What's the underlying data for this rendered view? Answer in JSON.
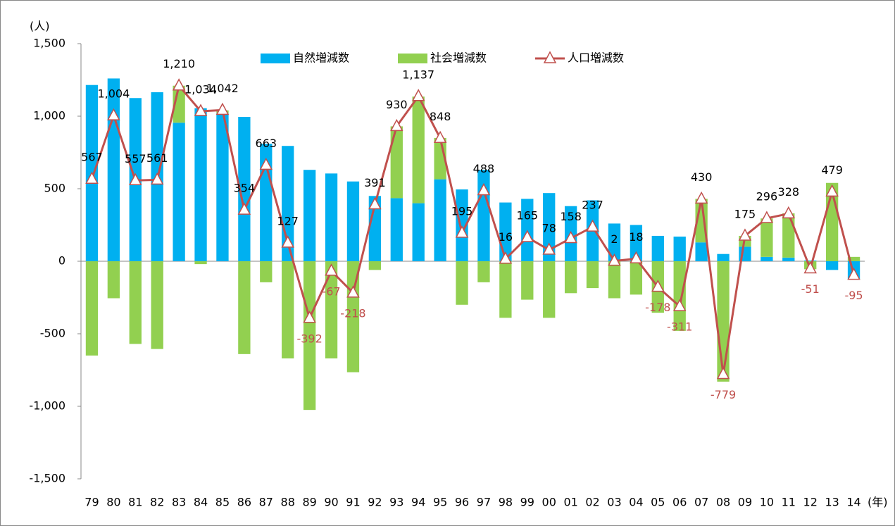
{
  "chart_data": {
    "type": "bar_line",
    "y_label": "(人)",
    "x_label": "(年)",
    "categories": [
      "79",
      "80",
      "81",
      "82",
      "83",
      "84",
      "85",
      "86",
      "87",
      "88",
      "89",
      "90",
      "91",
      "92",
      "93",
      "94",
      "95",
      "96",
      "97",
      "98",
      "99",
      "00",
      "01",
      "02",
      "03",
      "04",
      "05",
      "06",
      "07",
      "08",
      "09",
      "10",
      "11",
      "12",
      "13",
      "14"
    ],
    "series": [
      {
        "name": "自然増減数",
        "color": "#00b0f0",
        "kind": "bar",
        "values": [
          1215,
          1260,
          1125,
          1165,
          955,
          1055,
          1020,
          995,
          810,
          795,
          630,
          605,
          550,
          450,
          435,
          400,
          565,
          495,
          630,
          405,
          430,
          470,
          380,
          420,
          260,
          250,
          175,
          170,
          130,
          50,
          100,
          30,
          25,
          5,
          -60,
          -125
        ]
      },
      {
        "name": "社会増減数",
        "color": "#92d050",
        "kind": "bar",
        "values": [
          -650,
          -255,
          -570,
          -605,
          255,
          -20,
          20,
          -640,
          -145,
          -670,
          -1025,
          -670,
          -765,
          -60,
          495,
          735,
          285,
          -300,
          -145,
          -390,
          -265,
          -390,
          -220,
          -185,
          -255,
          -230,
          -355,
          -480,
          300,
          -830,
          75,
          265,
          305,
          -55,
          540,
          30
        ]
      },
      {
        "name": "人口増減数",
        "color": "#c0504d",
        "kind": "line",
        "values": [
          567,
          1004,
          557,
          561,
          1210,
          1034,
          1042,
          354,
          663,
          127,
          -392,
          -67,
          -218,
          391,
          930,
          1137,
          848,
          195,
          488,
          16,
          165,
          78,
          158,
          237,
          2,
          18,
          -178,
          -311,
          430,
          -779,
          175,
          296,
          328,
          -51,
          479,
          -95
        ],
        "value_labels": [
          "567",
          "1,004",
          "557",
          "561",
          "1,210",
          "1,034",
          "1,042",
          "354",
          "663",
          "127",
          "-392",
          "-67",
          "-218",
          "391",
          "930",
          "1,137",
          "848",
          "195",
          "488",
          "16",
          "165",
          "78",
          "158",
          "237",
          "2",
          "18",
          "-178",
          "-311",
          "430",
          "-779",
          "175",
          "296",
          "328",
          "-51",
          "479",
          "-95"
        ]
      }
    ],
    "ylim": [
      -1500,
      1500
    ],
    "yticks": [
      {
        "value": 1500,
        "label": "1,500"
      },
      {
        "value": 1000,
        "label": "1,000"
      },
      500,
      0,
      -500,
      {
        "value": -1000,
        "label": "-1,000"
      },
      {
        "value": -1500,
        "label": "-1,500"
      }
    ],
    "grid": false,
    "legend": "top"
  }
}
